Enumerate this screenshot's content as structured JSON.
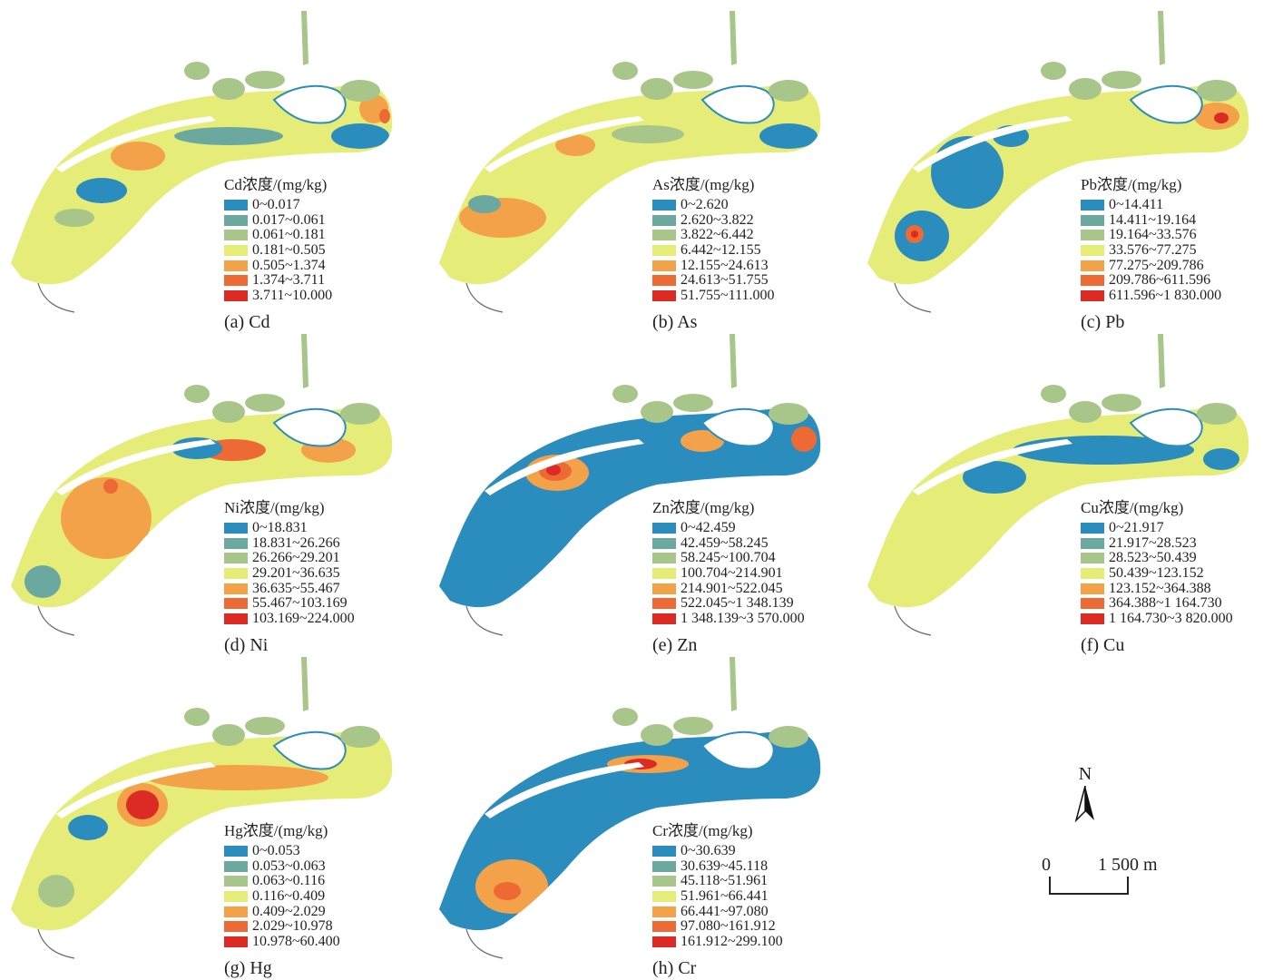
{
  "scale_colors": [
    "#2b8cbe",
    "#6aa8a0",
    "#a8c58a",
    "#e6ec78",
    "#f4a24a",
    "#ee6a35",
    "#dc2a24"
  ],
  "panels": [
    {
      "caption": "(a) Cd",
      "legend_title": "Cd浓度/(mg/kg)",
      "classes": [
        "0~0.017",
        "0.017~0.061",
        "0.061~0.181",
        "0.181~0.505",
        "0.505~1.374",
        "1.374~3.711",
        "3.711~10.000"
      ],
      "dominant_class": 3
    },
    {
      "caption": "(b) As",
      "legend_title": "As浓度/(mg/kg)",
      "classes": [
        "0~2.620",
        "2.620~3.822",
        "3.822~6.442",
        "6.442~12.155",
        "12.155~24.613",
        "24.613~51.755",
        "51.755~111.000"
      ],
      "dominant_class": 3
    },
    {
      "caption": "(c) Pb",
      "legend_title": "Pb浓度/(mg/kg)",
      "classes": [
        "0~14.411",
        "14.411~19.164",
        "19.164~33.576",
        "33.576~77.275",
        "77.275~209.786",
        "209.786~611.596",
        "611.596~1 830.000"
      ],
      "dominant_class": 3
    },
    {
      "caption": "(d) Ni",
      "legend_title": "Ni浓度/(mg/kg)",
      "classes": [
        "0~18.831",
        "18.831~26.266",
        "26.266~29.201",
        "29.201~36.635",
        "36.635~55.467",
        "55.467~103.169",
        "103.169~224.000"
      ],
      "dominant_class": 3
    },
    {
      "caption": "(e) Zn",
      "legend_title": "Zn浓度/(mg/kg)",
      "classes": [
        "0~42.459",
        "42.459~58.245",
        "58.245~100.704",
        "100.704~214.901",
        "214.901~522.045",
        "522.045~1 348.139",
        "1 348.139~3 570.000"
      ],
      "dominant_class": 0
    },
    {
      "caption": "(f) Cu",
      "legend_title": "Cu浓度/(mg/kg)",
      "classes": [
        "0~21.917",
        "21.917~28.523",
        "28.523~50.439",
        "50.439~123.152",
        "123.152~364.388",
        "364.388~1 164.730",
        "1 164.730~3 820.000"
      ],
      "dominant_class": 3
    },
    {
      "caption": "(g) Hg",
      "legend_title": "Hg浓度/(mg/kg)",
      "classes": [
        "0~0.053",
        "0.053~0.063",
        "0.063~0.116",
        "0.116~0.409",
        "0.409~2.029",
        "2.029~10.978",
        "10.978~60.400"
      ],
      "dominant_class": 3
    },
    {
      "caption": "(h) Cr",
      "legend_title": "Cr浓度/(mg/kg)",
      "classes": [
        "0~30.639",
        "30.639~45.118",
        "45.118~51.961",
        "51.961~66.441",
        "66.441~97.080",
        "97.080~161.912",
        "161.912~299.100"
      ],
      "dominant_class": 0
    }
  ],
  "north_arrow_label": "N",
  "scale_bar": {
    "zero": "0",
    "distance": "1 500 m"
  }
}
